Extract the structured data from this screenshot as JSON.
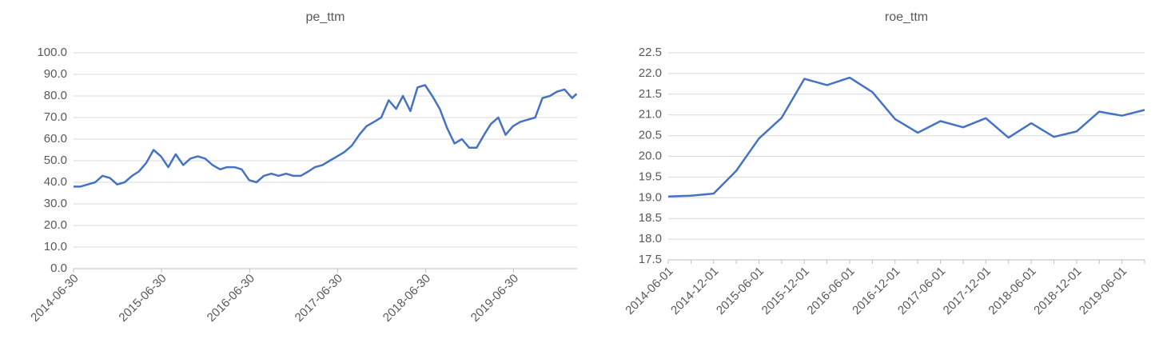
{
  "chart_data": [
    {
      "type": "line",
      "title": "pe_ttm",
      "x": [
        "2014-06-30",
        "2014-07-28",
        "2014-08-28",
        "2014-09-28",
        "2014-10-28",
        "2014-11-28",
        "2014-12-28",
        "2015-01-28",
        "2015-02-28",
        "2015-03-28",
        "2015-04-28",
        "2015-05-28",
        "2015-06-28",
        "2015-07-28",
        "2015-08-28",
        "2015-09-28",
        "2015-10-28",
        "2015-11-28",
        "2015-12-28",
        "2016-01-28",
        "2016-02-28",
        "2016-03-28",
        "2016-04-28",
        "2016-05-28",
        "2016-06-28",
        "2016-07-28",
        "2016-08-28",
        "2016-09-28",
        "2016-10-28",
        "2016-11-28",
        "2016-12-28",
        "2017-01-28",
        "2017-02-28",
        "2017-03-28",
        "2017-04-28",
        "2017-05-28",
        "2017-06-28",
        "2017-07-28",
        "2017-08-28",
        "2017-09-28",
        "2017-10-28",
        "2017-11-28",
        "2017-12-28",
        "2018-01-28",
        "2018-02-28",
        "2018-03-28",
        "2018-04-28",
        "2018-05-28",
        "2018-06-28",
        "2018-07-28",
        "2018-08-28",
        "2018-09-28",
        "2018-10-28",
        "2018-11-28",
        "2018-12-28",
        "2019-01-28",
        "2019-02-28",
        "2019-03-28",
        "2019-04-28",
        "2019-05-28",
        "2019-06-28",
        "2019-07-28",
        "2019-08-28",
        "2019-09-28",
        "2019-10-28",
        "2019-11-28",
        "2019-12-28",
        "2020-01-28",
        "2020-02-28",
        "2020-03-18"
      ],
      "series": [
        {
          "name": "pe_ttm",
          "color": "#4472c4",
          "values": [
            38,
            38,
            39,
            40,
            43,
            42,
            39,
            40,
            43,
            45,
            49,
            55,
            52,
            47,
            53,
            48,
            51,
            52,
            51,
            48,
            46,
            47,
            47,
            46,
            41,
            40,
            43,
            44,
            43,
            44,
            43,
            43,
            45,
            47,
            48,
            50,
            52,
            54,
            57,
            62,
            66,
            68,
            70,
            78,
            74,
            80,
            73,
            84,
            85,
            80,
            74,
            65,
            58,
            60,
            56,
            56,
            62,
            67,
            70,
            62,
            66,
            68,
            69,
            70,
            79,
            80,
            82,
            83,
            79,
            81
          ]
        }
      ],
      "xlim": [
        "2014-06-30",
        "2020-03-20"
      ],
      "xticks": [
        "2014-06-30",
        "2015-06-30",
        "2016-06-30",
        "2017-06-30",
        "2018-06-30",
        "2019-06-30"
      ],
      "ylim": [
        0,
        100
      ],
      "yticks": [
        {
          "value": 0,
          "label": "0.0"
        },
        {
          "value": 10,
          "label": "10.0"
        },
        {
          "value": 20,
          "label": "20.0"
        },
        {
          "value": 30,
          "label": "30.0"
        },
        {
          "value": 40,
          "label": "40.0"
        },
        {
          "value": 50,
          "label": "50.0"
        },
        {
          "value": 60,
          "label": "60.0"
        },
        {
          "value": 70,
          "label": "70.0"
        },
        {
          "value": 80,
          "label": "80.0"
        },
        {
          "value": 90,
          "label": "90.0"
        },
        {
          "value": 100,
          "label": "100.0"
        }
      ],
      "grid": true
    },
    {
      "type": "line",
      "title": "roe_ttm",
      "categories": [
        "2014-06-01",
        null,
        "2014-12-01",
        null,
        "2015-06-01",
        null,
        "2015-12-01",
        null,
        "2016-06-01",
        null,
        "2016-12-01",
        null,
        "2017-06-01",
        null,
        "2017-12-01",
        null,
        "2018-06-01",
        null,
        "2018-12-01",
        null,
        "2019-06-01",
        null
      ],
      "series": [
        {
          "name": "roe_ttm",
          "color": "#4472c4",
          "values": [
            19.03,
            19.05,
            19.1,
            19.65,
            20.43,
            20.93,
            21.87,
            21.72,
            21.9,
            21.55,
            20.9,
            20.57,
            20.85,
            20.7,
            20.92,
            20.45,
            20.8,
            20.47,
            20.6,
            21.08,
            20.98,
            21.12
          ]
        }
      ],
      "ylim": [
        17.5,
        22.5
      ],
      "yticks": [
        17.5,
        {
          "value": 18,
          "label": "18.0"
        },
        18.5,
        {
          "value": 19,
          "label": "19.0"
        },
        19.5,
        {
          "value": 20,
          "label": "20.0"
        },
        20.5,
        {
          "value": 21,
          "label": "21.0"
        },
        21.5,
        {
          "value": 22,
          "label": "22.0"
        },
        22.5
      ],
      "grid": true
    }
  ]
}
